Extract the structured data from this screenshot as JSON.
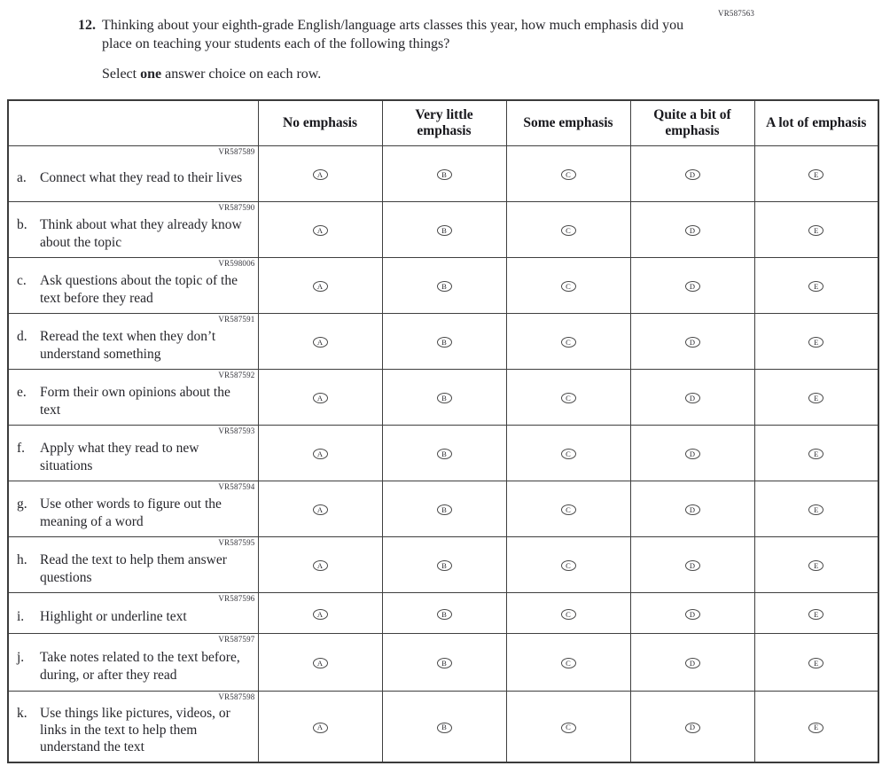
{
  "page": {
    "form_code": "VR587563",
    "question_number": "12.",
    "question_text": "Thinking about your eighth-grade English/language arts classes this year, how much emphasis did you place on teaching your students each of the following things?",
    "instruction_prefix": "Select ",
    "instruction_bold": "one",
    "instruction_suffix": " answer choice on each row."
  },
  "table": {
    "columns": [
      "No emphasis",
      "Very little emphasis",
      "Some emphasis",
      "Quite a bit of emphasis",
      "A lot of emphasis"
    ],
    "options": [
      "A",
      "B",
      "C",
      "D",
      "E"
    ],
    "rows": [
      {
        "code": "VR587589",
        "letter": "a.",
        "text": "Connect what they read to their lives"
      },
      {
        "code": "VR587590",
        "letter": "b.",
        "text": "Think about what they already know about the topic"
      },
      {
        "code": "VR598006",
        "letter": "c.",
        "text": "Ask questions about the topic of the text before they read"
      },
      {
        "code": "VR587591",
        "letter": "d.",
        "text": "Reread the text when they don’t understand something"
      },
      {
        "code": "VR587592",
        "letter": "e.",
        "text": "Form their own opinions about the text"
      },
      {
        "code": "VR587593",
        "letter": "f.",
        "text": "Apply what they read to new situations"
      },
      {
        "code": "VR587594",
        "letter": "g.",
        "text": "Use other words to figure out the meaning of a word"
      },
      {
        "code": "VR587595",
        "letter": "h.",
        "text": "Read the text to help them answer questions"
      },
      {
        "code": "VR587596",
        "letter": "i.",
        "text": "Highlight or underline text"
      },
      {
        "code": "VR587597",
        "letter": "j.",
        "text": "Take notes related to the text before, during, or after they read"
      },
      {
        "code": "VR587598",
        "letter": "k.",
        "text": "Use things like pictures, videos, or links in the text to help them understand the text"
      }
    ]
  },
  "colors": {
    "border": "#3f3f3f",
    "text": "#26262b"
  }
}
